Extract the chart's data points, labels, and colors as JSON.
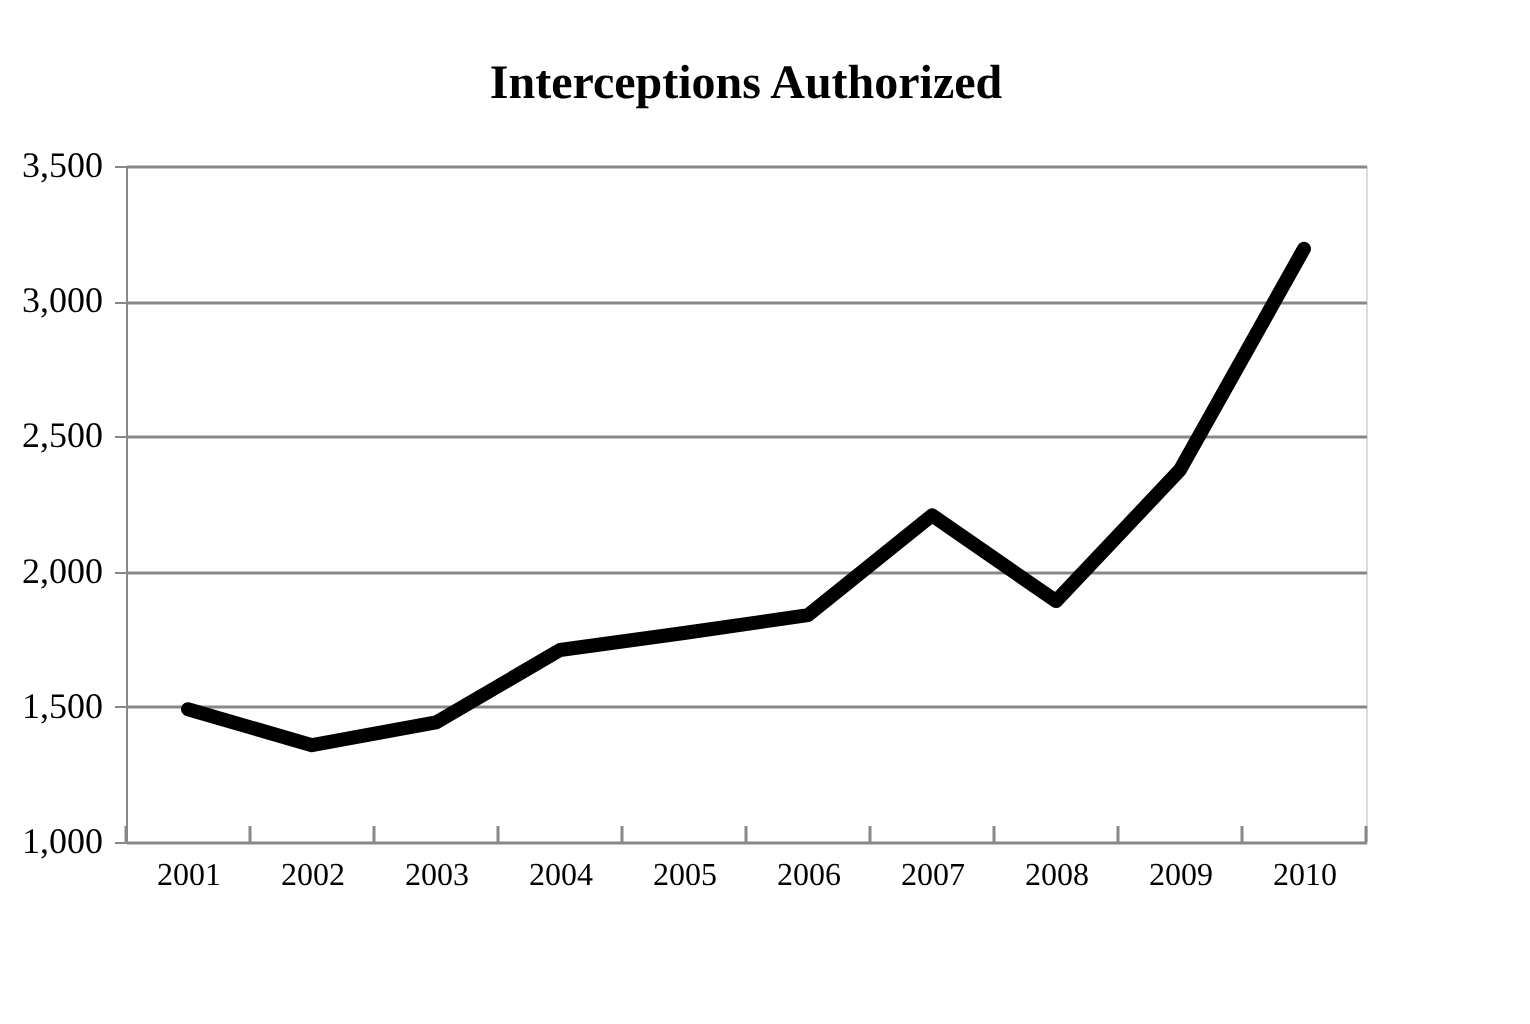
{
  "chart_data": {
    "type": "line",
    "title": "Interceptions Authorized",
    "categories": [
      "2001",
      "2002",
      "2003",
      "2004",
      "2005",
      "2006",
      "2007",
      "2008",
      "2009",
      "2010"
    ],
    "series": [
      {
        "color": "#000000",
        "values": [
          1491,
          1358,
          1442,
          1710,
          1773,
          1839,
          2208,
          1891,
          2376,
          3194
        ]
      }
    ],
    "ylim": [
      1000,
      3500
    ],
    "yticks": [
      {
        "value": 1000,
        "label": "1,000"
      },
      {
        "value": 1500,
        "label": "1,500"
      },
      {
        "value": 2000,
        "label": "2,000"
      },
      {
        "value": 2500,
        "label": "2,500"
      },
      {
        "value": 3000,
        "label": "3,000"
      },
      {
        "value": 3500,
        "label": "3,500"
      }
    ],
    "grid": "y",
    "legend": false,
    "marker": "none",
    "line_style": "solid"
  }
}
